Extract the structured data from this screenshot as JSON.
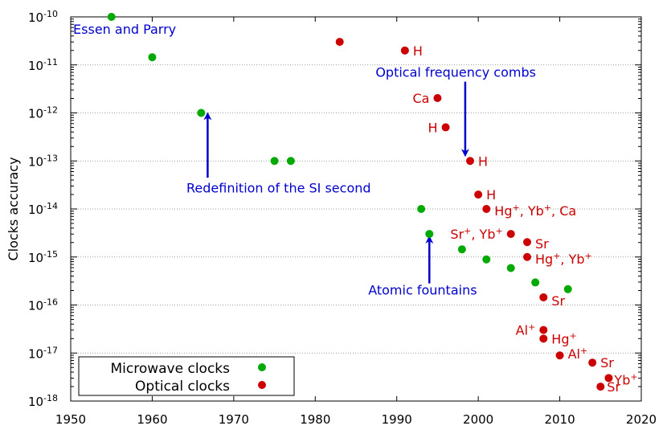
{
  "colors": {
    "microwave": "#00aa00",
    "optical": "#cc0000",
    "annotation": "#0000cc",
    "grid": "#808080",
    "axis": "#000000"
  },
  "chart_data": {
    "type": "scatter",
    "title": "",
    "xlabel": "",
    "ylabel": "Clocks accuracy",
    "xlim": [
      1950,
      2020
    ],
    "ylim_exponent": [
      -18,
      -10
    ],
    "yscale": "log",
    "grid": "horizontal dotted",
    "x_ticks": [
      1950,
      1960,
      1970,
      1980,
      1990,
      2000,
      2010,
      2020
    ],
    "y_ticks": [
      {
        "exp": -10,
        "base": "10",
        "sup": "-10"
      },
      {
        "exp": -11,
        "base": "10",
        "sup": "-11"
      },
      {
        "exp": -12,
        "base": "10",
        "sup": "-12"
      },
      {
        "exp": -13,
        "base": "10",
        "sup": "-13"
      },
      {
        "exp": -14,
        "base": "10",
        "sup": "-14"
      },
      {
        "exp": -15,
        "base": "10",
        "sup": "-15"
      },
      {
        "exp": -16,
        "base": "10",
        "sup": "-16"
      },
      {
        "exp": -17,
        "base": "10",
        "sup": "-17"
      },
      {
        "exp": -18,
        "base": "10",
        "sup": "-18"
      }
    ],
    "legend_position": "bottom-left",
    "series": [
      {
        "name": "Microwave clocks",
        "key": "microwave",
        "points": [
          {
            "x": 1955,
            "log10y": -10.0
          },
          {
            "x": 1960,
            "log10y": -10.84
          },
          {
            "x": 1966,
            "log10y": -12.0
          },
          {
            "x": 1975,
            "log10y": -13.0
          },
          {
            "x": 1977,
            "log10y": -13.0
          },
          {
            "x": 1993,
            "log10y": -14.0
          },
          {
            "x": 1994,
            "log10y": -14.52
          },
          {
            "x": 1998,
            "log10y": -14.84
          },
          {
            "x": 2001,
            "log10y": -15.05
          },
          {
            "x": 2004,
            "log10y": -15.23
          },
          {
            "x": 2007,
            "log10y": -15.53
          },
          {
            "x": 2011,
            "log10y": -15.67
          }
        ]
      },
      {
        "name": "Optical clocks",
        "key": "optical",
        "points": [
          {
            "x": 1983,
            "log10y": -10.52
          },
          {
            "x": 1991,
            "log10y": -10.7,
            "label": "H",
            "anchor": "start",
            "dx": 10,
            "dy": 6
          },
          {
            "x": 1995,
            "log10y": -11.69,
            "label": "Ca",
            "anchor": "end",
            "dx": -10,
            "dy": 6
          },
          {
            "x": 1996,
            "log10y": -12.3,
            "label": "H",
            "anchor": "end",
            "dx": -10,
            "dy": 6
          },
          {
            "x": 1999,
            "log10y": -13.0,
            "label": "H",
            "anchor": "start",
            "dx": 10,
            "dy": 6
          },
          {
            "x": 2000,
            "log10y": -13.7,
            "label": "H",
            "anchor": "start",
            "dx": 10,
            "dy": 6
          },
          {
            "x": 2001,
            "log10y": -14.0,
            "anchor": "start",
            "dx": 10,
            "dy": 8,
            "parts": [
              {
                "t": "Hg"
              },
              {
                "t": "+",
                "sup": true
              },
              {
                "t": ", Yb"
              },
              {
                "t": "+",
                "sup": true
              },
              {
                "t": ", Ca"
              }
            ]
          },
          {
            "x": 2004,
            "log10y": -14.52,
            "anchor": "end",
            "dx": -10,
            "dy": 6,
            "parts": [
              {
                "t": "Sr"
              },
              {
                "t": "+",
                "sup": true
              },
              {
                "t": ", Yb"
              },
              {
                "t": "+",
                "sup": true
              }
            ]
          },
          {
            "x": 2006,
            "log10y": -14.69,
            "label": "Sr",
            "anchor": "start",
            "dx": 10,
            "dy": 8
          },
          {
            "x": 2006,
            "log10y": -15.0,
            "anchor": "start",
            "dx": 10,
            "dy": 8,
            "parts": [
              {
                "t": "Hg"
              },
              {
                "t": "+",
                "sup": true
              },
              {
                "t": ", Yb"
              },
              {
                "t": "+",
                "sup": true
              }
            ]
          },
          {
            "x": 2008,
            "log10y": -15.84,
            "label": "Sr",
            "anchor": "start",
            "dx": 10,
            "dy": 10
          },
          {
            "x": 2008,
            "log10y": -16.52,
            "anchor": "end",
            "dx": -10,
            "dy": 6,
            "parts": [
              {
                "t": "Al"
              },
              {
                "t": "+",
                "sup": true
              }
            ]
          },
          {
            "x": 2008,
            "log10y": -16.7,
            "anchor": "start",
            "dx": 10,
            "dy": 6,
            "parts": [
              {
                "t": "Hg"
              },
              {
                "t": "+",
                "sup": true
              }
            ]
          },
          {
            "x": 2010,
            "log10y": -17.05,
            "anchor": "start",
            "dx": 10,
            "dy": 4,
            "parts": [
              {
                "t": "Al"
              },
              {
                "t": "+",
                "sup": true
              }
            ]
          },
          {
            "x": 2014,
            "log10y": -17.2,
            "label": "Sr",
            "anchor": "start",
            "dx": 10,
            "dy": 6
          },
          {
            "x": 2015,
            "log10y": -17.7,
            "label": "Sr",
            "anchor": "start",
            "dx": 8,
            "dy": 6
          },
          {
            "x": 2016,
            "log10y": -17.52,
            "anchor": "start",
            "dx": 7,
            "dy": 8,
            "parts": [
              {
                "t": "Yb"
              },
              {
                "t": "+",
                "sup": true
              }
            ]
          }
        ]
      }
    ],
    "annotations": [
      {
        "key": "essen-and-parry",
        "text": "Essen and Parry",
        "x": 1950.3,
        "log10y": -10.35
      },
      {
        "key": "optical-frequency-combs",
        "text": "Optical frequency combs",
        "x": 1987.4,
        "log10y": -11.25,
        "arrow_from": {
          "x": 1998.4,
          "log10y": -11.35
        },
        "arrow_to": {
          "x": 1998.4,
          "log10y": -12.85
        }
      },
      {
        "key": "redefinition-si-second",
        "text": "Redefinition of the SI second",
        "x": 1964.2,
        "log10y": -13.66,
        "arrow_from": {
          "x": 1966.8,
          "log10y": -13.35
        },
        "arrow_to": {
          "x": 1966.8,
          "log10y": -12.05
        }
      },
      {
        "key": "atomic-fountains",
        "text": "Atomic fountains",
        "x": 1986.5,
        "log10y": -15.78,
        "arrow_from": {
          "x": 1994,
          "log10y": -15.55
        },
        "arrow_to": {
          "x": 1994,
          "log10y": -14.62
        }
      }
    ]
  }
}
